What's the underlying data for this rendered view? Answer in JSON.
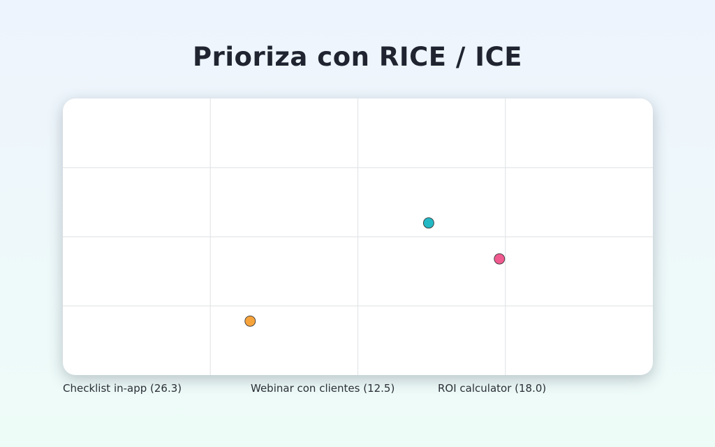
{
  "title": "Prioriza con RICE / ICE",
  "chart_data": {
    "type": "scatter",
    "grid": true,
    "xlim": [
      0,
      4
    ],
    "ylim": [
      0,
      4
    ],
    "series": [
      {
        "name": "Checklist in-app (26.3)",
        "color": "#f7a33c",
        "x": [
          1.27
        ],
        "y": [
          0.78
        ]
      },
      {
        "name": "Webinar con clientes (12.5)",
        "color": "#22b8c4",
        "x": [
          2.48
        ],
        "y": [
          2.2
        ]
      },
      {
        "name": "ROI calculator (18.0)",
        "color": "#f05a8f",
        "x": [
          2.96
        ],
        "y": [
          1.68
        ]
      }
    ]
  }
}
